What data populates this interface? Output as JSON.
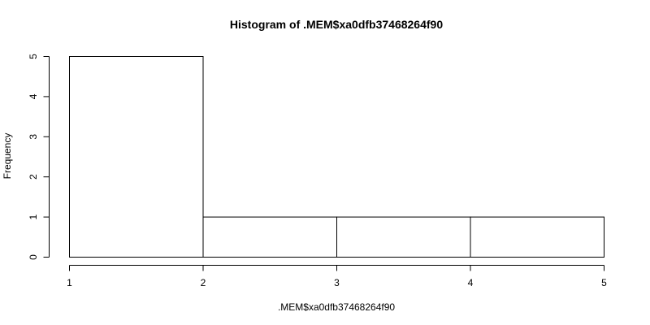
{
  "chart_data": {
    "type": "bar",
    "title": "Histogram of .MEM$xa0dfb37468264f90",
    "xlabel": ".MEM$xa0dfb37468264f90",
    "ylabel": "Frequency",
    "bins": [
      {
        "start": 1,
        "end": 2,
        "count": 5
      },
      {
        "start": 2,
        "end": 3,
        "count": 1
      },
      {
        "start": 3,
        "end": 4,
        "count": 1
      },
      {
        "start": 4,
        "end": 5,
        "count": 1
      }
    ],
    "xlim": [
      1,
      5
    ],
    "ylim": [
      0,
      5
    ],
    "x_ticks": [
      "1",
      "2",
      "3",
      "4",
      "5"
    ],
    "y_ticks": [
      "0",
      "1",
      "2",
      "3",
      "4",
      "5"
    ],
    "grid": false,
    "bar_color": "#ffffff",
    "line_color": "#000000"
  }
}
